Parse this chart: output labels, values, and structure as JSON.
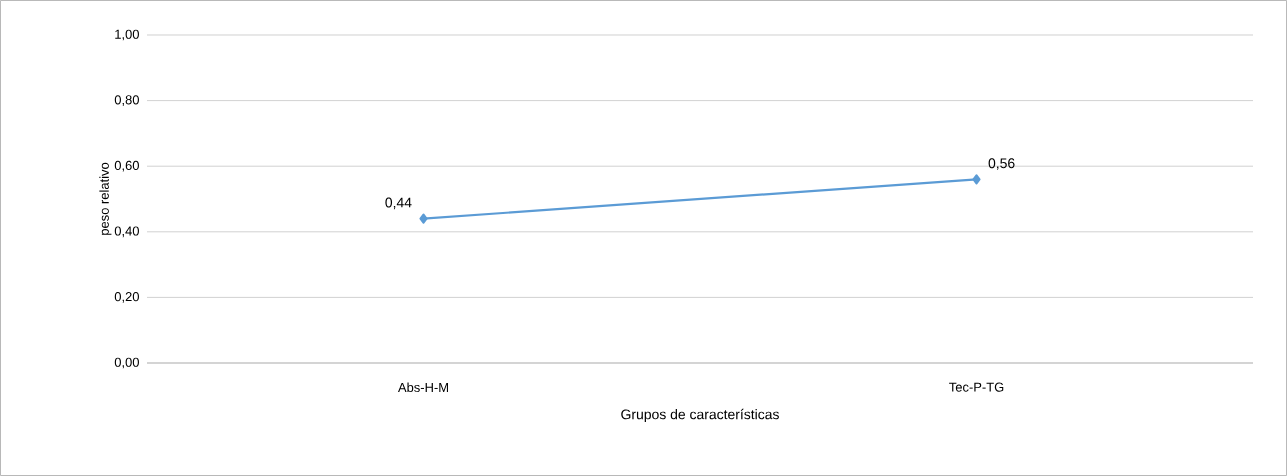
{
  "chart_data": {
    "type": "line",
    "xlabel": "Grupos de características",
    "ylabel": "peso relativo",
    "categories": [
      "Abs-H-M",
      "Tec-P-TG"
    ],
    "series": [
      {
        "color": "#5b9bd5",
        "values": [
          0.44,
          0.56
        ],
        "value_labels": [
          "0,44",
          "0,56"
        ]
      }
    ],
    "ylim": [
      0,
      1
    ],
    "yticks": [
      {
        "value": 0,
        "label": "0,00"
      },
      {
        "value": 0.2,
        "label": "0,20"
      },
      {
        "value": 0.4,
        "label": "0,40"
      },
      {
        "value": 0.6,
        "label": "0,60"
      },
      {
        "value": 0.8,
        "label": "0,80"
      },
      {
        "value": 1,
        "label": "1,00"
      }
    ],
    "grid": "y",
    "marker": "diamond",
    "line_style": "solid"
  }
}
